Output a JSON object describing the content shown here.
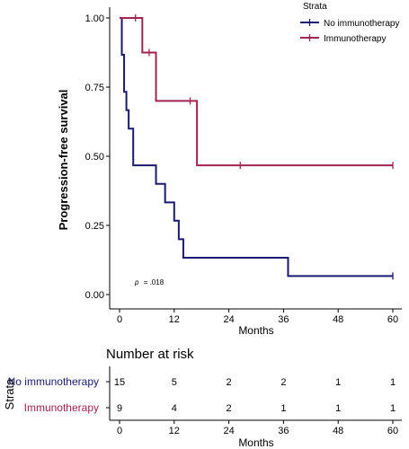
{
  "chart_data": {
    "type": "line",
    "subtype": "kaplan-meier",
    "title": "",
    "xlabel": "Months",
    "ylabel": "Progression-free survival",
    "xlim": [
      0,
      60
    ],
    "ylim": [
      0,
      1
    ],
    "x_ticks": [
      0,
      12,
      24,
      36,
      48,
      60
    ],
    "y_ticks": [
      "0.00",
      "0.25",
      "0.50",
      "0.75",
      "1.00"
    ],
    "grid": false,
    "legend": {
      "title": "Strata",
      "position": "top-right"
    },
    "annotation": {
      "p_prefix": "p",
      "p_value": "= .018"
    },
    "series": [
      {
        "name": "No immunotherapy",
        "color": "#1a1a6e",
        "steps": [
          [
            0,
            1.0
          ],
          [
            0.5,
            0.867
          ],
          [
            1,
            0.733
          ],
          [
            1.5,
            0.667
          ],
          [
            2,
            0.6
          ],
          [
            3,
            0.467
          ],
          [
            8,
            0.4
          ],
          [
            10,
            0.333
          ],
          [
            12,
            0.267
          ],
          [
            13,
            0.2
          ],
          [
            14,
            0.133
          ],
          [
            37,
            0.067
          ],
          [
            60,
            0.067
          ]
        ],
        "censor": [
          60
        ]
      },
      {
        "name": "Immunotherapy",
        "color": "#a0244e",
        "steps": [
          [
            0,
            1.0
          ],
          [
            5,
            0.875
          ],
          [
            8,
            0.7
          ],
          [
            17,
            0.467
          ],
          [
            60,
            0.467
          ]
        ],
        "censor": [
          3.5,
          6.5,
          15.5,
          26.5,
          60
        ]
      }
    ]
  },
  "risk_table": {
    "title": "Number at risk",
    "xlabel": "Months",
    "ylabel": "Strata",
    "x_ticks": [
      0,
      12,
      24,
      36,
      48,
      60
    ],
    "rows": [
      {
        "label": "No immunotherapy",
        "color": "#1a1a6e",
        "values": [
          "15",
          "5",
          "2",
          "2",
          "1",
          "1"
        ]
      },
      {
        "label": "Immunotherapy",
        "color": "#a0244e",
        "values": [
          "9",
          "4",
          "2",
          "1",
          "1",
          "1"
        ]
      }
    ]
  }
}
